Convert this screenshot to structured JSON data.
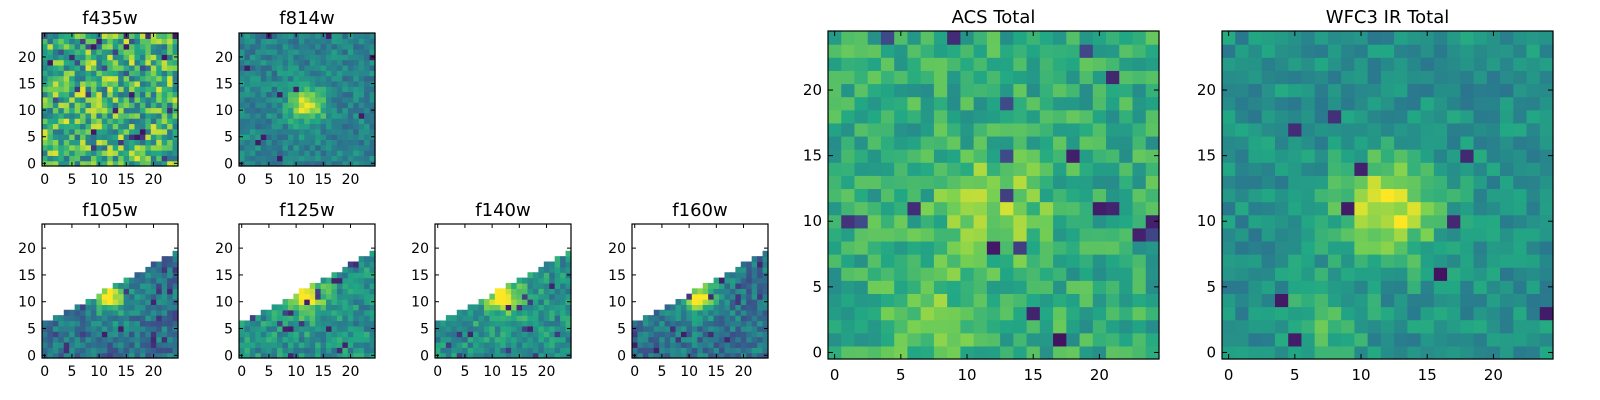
{
  "chart_data": [
    {
      "type": "heatmap",
      "title": "f435w",
      "grid": "25x25",
      "xlim": [
        -0.5,
        24.5
      ],
      "ylim": [
        -0.5,
        24.5
      ],
      "xticks": [
        0,
        5,
        10,
        15,
        20
      ],
      "yticks": [
        0,
        5,
        10,
        15,
        20
      ],
      "features": "noise, no clear source",
      "grid_lines": false
    },
    {
      "type": "heatmap",
      "title": "f814w",
      "grid": "25x25",
      "xlim": [
        -0.5,
        24.5
      ],
      "ylim": [
        -0.5,
        24.5
      ],
      "xticks": [
        0,
        5,
        10,
        15,
        20
      ],
      "yticks": [
        0,
        5,
        10,
        15,
        20
      ],
      "peak": {
        "x": 12,
        "y": 11
      },
      "grid_lines": false
    },
    {
      "type": "heatmap",
      "title": "f105w",
      "grid": "25x25",
      "xlim": [
        -0.5,
        24.5
      ],
      "ylim": [
        -0.5,
        24.5
      ],
      "xticks": [
        0,
        5,
        10,
        15,
        20
      ],
      "yticks": [
        0,
        5,
        10,
        15,
        20
      ],
      "peak": {
        "x": 12,
        "y": 11
      },
      "masked_region": "upper-left",
      "grid_lines": false
    },
    {
      "type": "heatmap",
      "title": "f125w",
      "grid": "25x25",
      "xlim": [
        -0.5,
        24.5
      ],
      "ylim": [
        -0.5,
        24.5
      ],
      "xticks": [
        0,
        5,
        10,
        15,
        20
      ],
      "yticks": [
        0,
        5,
        10,
        15,
        20
      ],
      "peak": {
        "x": 12,
        "y": 11
      },
      "masked_region": "upper-left",
      "grid_lines": false
    },
    {
      "type": "heatmap",
      "title": "f140w",
      "grid": "25x25",
      "xlim": [
        -0.5,
        24.5
      ],
      "ylim": [
        -0.5,
        24.5
      ],
      "xticks": [
        0,
        5,
        10,
        15,
        20
      ],
      "yticks": [
        0,
        5,
        10,
        15,
        20
      ],
      "peak": {
        "x": 11,
        "y": 11
      },
      "masked_region": "upper-left",
      "grid_lines": false
    },
    {
      "type": "heatmap",
      "title": "f160w",
      "grid": "25x25",
      "xlim": [
        -0.5,
        24.5
      ],
      "ylim": [
        -0.5,
        24.5
      ],
      "xticks": [
        0,
        5,
        10,
        15,
        20
      ],
      "yticks": [
        0,
        5,
        10,
        15,
        20
      ],
      "peak": {
        "x": 12,
        "y": 11
      },
      "masked_region": "upper-left",
      "grid_lines": false
    },
    {
      "type": "heatmap",
      "title": "ACS Total",
      "grid": "25x25",
      "xlim": [
        -0.5,
        24.5
      ],
      "ylim": [
        -0.5,
        24.5
      ],
      "xticks": [
        0,
        5,
        10,
        15,
        20
      ],
      "yticks": [
        0,
        5,
        10,
        15,
        20
      ],
      "peak": {
        "x": 12,
        "y": 11
      },
      "grid_lines": false
    },
    {
      "type": "heatmap",
      "title": "WFC3 IR Total",
      "grid": "25x25",
      "xlim": [
        -0.5,
        24.5
      ],
      "ylim": [
        -0.5,
        24.5
      ],
      "xticks": [
        0,
        5,
        10,
        15,
        20
      ],
      "yticks": [
        0,
        5,
        10,
        15,
        20
      ],
      "peak": {
        "x": 12,
        "y": 11
      },
      "grid_lines": false
    }
  ],
  "colormap": [
    "#440154",
    "#414487",
    "#2a788e",
    "#22a884",
    "#7ad151",
    "#fde725"
  ]
}
